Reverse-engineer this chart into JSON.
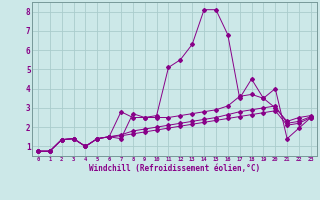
{
  "xlabel": "Windchill (Refroidissement éolien,°C)",
  "bg_color": "#cce8e8",
  "line_color": "#880088",
  "grid_color": "#aacccc",
  "x_data": [
    0,
    1,
    2,
    3,
    4,
    5,
    6,
    7,
    8,
    9,
    10,
    11,
    12,
    13,
    14,
    15,
    16,
    17,
    18,
    19,
    20,
    21,
    22,
    23
  ],
  "series1": [
    0.75,
    0.75,
    1.35,
    1.4,
    1.0,
    1.4,
    1.5,
    1.4,
    2.7,
    2.5,
    2.6,
    5.1,
    5.5,
    6.3,
    8.1,
    8.1,
    6.8,
    3.5,
    4.5,
    3.5,
    4.0,
    1.4,
    1.95,
    2.5
  ],
  "series2": [
    0.75,
    0.75,
    1.35,
    1.4,
    1.0,
    1.4,
    1.5,
    2.8,
    2.5,
    2.5,
    2.5,
    2.5,
    2.6,
    2.7,
    2.8,
    2.9,
    3.1,
    3.6,
    3.7,
    3.5,
    3.0,
    2.3,
    2.5,
    2.6
  ],
  "series3": [
    0.75,
    0.75,
    1.35,
    1.4,
    1.0,
    1.4,
    1.5,
    1.6,
    1.8,
    1.9,
    2.0,
    2.1,
    2.2,
    2.3,
    2.4,
    2.5,
    2.65,
    2.8,
    2.9,
    3.0,
    3.1,
    2.2,
    2.3,
    2.55
  ],
  "series4": [
    0.75,
    0.75,
    1.35,
    1.4,
    1.0,
    1.4,
    1.5,
    1.55,
    1.65,
    1.75,
    1.85,
    1.95,
    2.05,
    2.15,
    2.25,
    2.35,
    2.45,
    2.55,
    2.65,
    2.75,
    2.85,
    2.1,
    2.2,
    2.5
  ],
  "xlim": [
    -0.5,
    23.5
  ],
  "ylim": [
    0.5,
    8.5
  ],
  "yticks": [
    1,
    2,
    3,
    4,
    5,
    6,
    7,
    8
  ],
  "xticks": [
    0,
    1,
    2,
    3,
    4,
    5,
    6,
    7,
    8,
    9,
    10,
    11,
    12,
    13,
    14,
    15,
    16,
    17,
    18,
    19,
    20,
    21,
    22,
    23
  ]
}
